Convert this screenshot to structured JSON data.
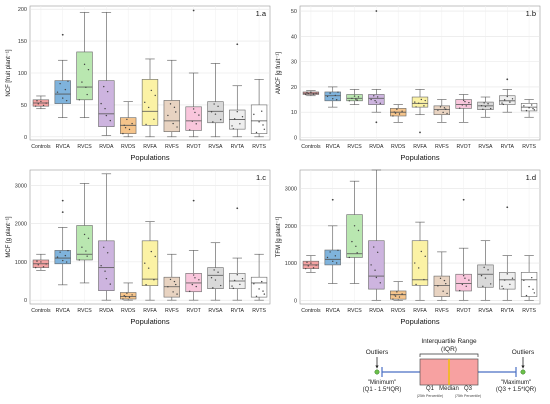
{
  "categories": [
    "Controls",
    "RVCA",
    "RVCS",
    "RVDA",
    "RVDS",
    "RVFA",
    "RVFS",
    "RVOT",
    "RVSA",
    "RVTA",
    "RVTS"
  ],
  "box_colors": [
    "#f4a3a3",
    "#7fb3dc",
    "#b9e7b0",
    "#cdb4df",
    "#f5c48b",
    "#fbf2a5",
    "#e8d3c1",
    "#f9c6dc",
    "#d9d9d9",
    "#eeeeee",
    "#ffffff"
  ],
  "chart_data": [
    {
      "type": "box",
      "panel": "1.a",
      "xlabel": "Populations",
      "ylabel": "NCF [fruit plant⁻¹]",
      "ylim": [
        -5,
        205
      ],
      "yticks": [
        0,
        50,
        100,
        150,
        200
      ],
      "grid": true,
      "boxes": [
        {
          "category": "Controls",
          "min": 44,
          "q1": 48,
          "median": 53,
          "q3": 58,
          "max": 64
        },
        {
          "category": "RVCA",
          "min": 30,
          "q1": 52,
          "median": 67,
          "q3": 88,
          "max": 120
        },
        {
          "category": "RVCS",
          "min": 30,
          "q1": 58,
          "median": 78,
          "q3": 133,
          "max": 195
        },
        {
          "category": "RVDA",
          "min": 2,
          "q1": 16,
          "median": 36,
          "q3": 88,
          "max": 195
        },
        {
          "category": "RVDS",
          "min": 0,
          "q1": 5,
          "median": 18,
          "q3": 30,
          "max": 55
        },
        {
          "category": "RVFA",
          "min": 0,
          "q1": 18,
          "median": 40,
          "q3": 90,
          "max": 122
        },
        {
          "category": "RVFS",
          "min": 0,
          "q1": 8,
          "median": 25,
          "q3": 57,
          "max": 120
        },
        {
          "category": "RVOT",
          "min": 0,
          "q1": 10,
          "median": 25,
          "q3": 47,
          "max": 100
        },
        {
          "category": "RVSA",
          "min": 0,
          "q1": 22,
          "median": 40,
          "q3": 55,
          "max": 115
        },
        {
          "category": "RVTA",
          "min": 0,
          "q1": 12,
          "median": 27,
          "q3": 42,
          "max": 80
        },
        {
          "category": "RVTS",
          "min": 0,
          "q1": 5,
          "median": 25,
          "q3": 50,
          "max": 90
        }
      ],
      "outliers": [
        {
          "category": "RVCA",
          "values": [
            160
          ]
        },
        {
          "category": "RVOT",
          "values": [
            198
          ]
        },
        {
          "category": "RVTA",
          "values": [
            145
          ]
        }
      ]
    },
    {
      "type": "box",
      "panel": "1.b",
      "xlabel": "Populations",
      "ylabel": "AMCF [g fruit⁻¹]",
      "ylim": [
        -1,
        52
      ],
      "yticks": [
        0,
        10,
        20,
        30,
        40,
        50
      ],
      "grid": true,
      "boxes": [
        {
          "category": "Controls",
          "min": 16.5,
          "q1": 17,
          "median": 17.5,
          "q3": 18,
          "max": 18.5
        },
        {
          "category": "RVCA",
          "min": 12,
          "q1": 14.5,
          "median": 16.5,
          "q3": 18,
          "max": 20
        },
        {
          "category": "RVCS",
          "min": 13,
          "q1": 14.5,
          "median": 15.5,
          "q3": 17,
          "max": 19
        },
        {
          "category": "RVDA",
          "min": 10,
          "q1": 13,
          "median": 15.5,
          "q3": 17,
          "max": 19
        },
        {
          "category": "RVDS",
          "min": 6,
          "q1": 8.5,
          "median": 10,
          "q3": 11.5,
          "max": 13
        },
        {
          "category": "RVFA",
          "min": 9,
          "q1": 12,
          "median": 13.5,
          "q3": 16,
          "max": 19
        },
        {
          "category": "RVFS",
          "min": 6,
          "q1": 9,
          "median": 11,
          "q3": 12.5,
          "max": 15
        },
        {
          "category": "RVOT",
          "min": 6,
          "q1": 11.5,
          "median": 13,
          "q3": 15,
          "max": 17
        },
        {
          "category": "RVSA",
          "min": 8,
          "q1": 11,
          "median": 12.5,
          "q3": 14,
          "max": 16
        },
        {
          "category": "RVTA",
          "min": 10,
          "q1": 13,
          "median": 14.5,
          "q3": 16.5,
          "max": 19
        },
        {
          "category": "RVTS",
          "min": 8,
          "q1": 10.5,
          "median": 12,
          "q3": 13.5,
          "max": 15
        }
      ],
      "outliers": [
        {
          "category": "RVDA",
          "values": [
            50,
            6
          ]
        },
        {
          "category": "RVFA",
          "values": [
            2
          ]
        },
        {
          "category": "RVTA",
          "values": [
            23
          ]
        }
      ]
    },
    {
      "type": "box",
      "panel": "1.c",
      "xlabel": "Populations",
      "ylabel": "MCF [g plant⁻¹]",
      "ylim": [
        -100,
        3400
      ],
      "yticks": [
        0,
        1000,
        2000,
        3000
      ],
      "grid": true,
      "boxes": [
        {
          "category": "Controls",
          "min": 780,
          "q1": 850,
          "median": 950,
          "q3": 1050,
          "max": 1200
        },
        {
          "category": "RVCA",
          "min": 400,
          "q1": 950,
          "median": 1100,
          "q3": 1300,
          "max": 1900
        },
        {
          "category": "RVCS",
          "min": 450,
          "q1": 1050,
          "median": 1200,
          "q3": 1950,
          "max": 3050
        },
        {
          "category": "RVDA",
          "min": 0,
          "q1": 250,
          "median": 850,
          "q3": 1550,
          "max": 3300
        },
        {
          "category": "RVDS",
          "min": 0,
          "q1": 30,
          "median": 100,
          "q3": 200,
          "max": 450
        },
        {
          "category": "RVFA",
          "min": 0,
          "q1": 380,
          "median": 550,
          "q3": 1550,
          "max": 2050
        },
        {
          "category": "RVFS",
          "min": 0,
          "q1": 80,
          "median": 350,
          "q3": 600,
          "max": 1200
        },
        {
          "category": "RVOT",
          "min": 0,
          "q1": 220,
          "median": 450,
          "q3": 700,
          "max": 1300
        },
        {
          "category": "RVSA",
          "min": 0,
          "q1": 300,
          "median": 650,
          "q3": 850,
          "max": 1500
        },
        {
          "category": "RVTA",
          "min": 0,
          "q1": 300,
          "median": 500,
          "q3": 700,
          "max": 1100
        },
        {
          "category": "RVTS",
          "min": 0,
          "q1": 80,
          "median": 450,
          "q3": 600,
          "max": 1200
        }
      ],
      "outliers": [
        {
          "category": "RVCA",
          "values": [
            2600,
            2300
          ]
        },
        {
          "category": "RVOT",
          "values": [
            2600
          ]
        },
        {
          "category": "RVTA",
          "values": [
            2400
          ]
        }
      ]
    },
    {
      "type": "box",
      "panel": "1.d",
      "xlabel": "Populations",
      "ylabel": "TFM [g plant⁻¹]",
      "ylim": [
        -100,
        3500
      ],
      "yticks": [
        0,
        1000,
        2000,
        3000
      ],
      "grid": true,
      "boxes": [
        {
          "category": "Controls",
          "min": 750,
          "q1": 850,
          "median": 950,
          "q3": 1050,
          "max": 1200
        },
        {
          "category": "RVCA",
          "min": 450,
          "q1": 950,
          "median": 1100,
          "q3": 1350,
          "max": 2000
        },
        {
          "category": "RVCS",
          "min": 450,
          "q1": 1150,
          "median": 1250,
          "q3": 2300,
          "max": 3200
        },
        {
          "category": "RVDA",
          "min": 0,
          "q1": 300,
          "median": 650,
          "q3": 1600,
          "max": 3500
        },
        {
          "category": "RVDS",
          "min": 0,
          "q1": 30,
          "median": 150,
          "q3": 250,
          "max": 500
        },
        {
          "category": "RVFA",
          "min": 0,
          "q1": 400,
          "median": 550,
          "q3": 1600,
          "max": 2100
        },
        {
          "category": "RVFS",
          "min": 0,
          "q1": 100,
          "median": 400,
          "q3": 650,
          "max": 1300
        },
        {
          "category": "RVOT",
          "min": 0,
          "q1": 250,
          "median": 450,
          "q3": 700,
          "max": 1400
        },
        {
          "category": "RVSA",
          "min": 0,
          "q1": 350,
          "median": 700,
          "q3": 950,
          "max": 1600
        },
        {
          "category": "RVTA",
          "min": 0,
          "q1": 300,
          "median": 550,
          "q3": 750,
          "max": 1200
        },
        {
          "category": "RVTS",
          "min": 0,
          "q1": 100,
          "median": 550,
          "q3": 750,
          "max": 1200
        }
      ],
      "outliers": [
        {
          "category": "RVCA",
          "values": [
            2700
          ]
        },
        {
          "category": "RVOT",
          "values": [
            2700
          ]
        },
        {
          "category": "RVTA",
          "values": [
            2500
          ]
        }
      ]
    }
  ],
  "legend": {
    "iqr_title": "Interquartile Range",
    "iqr_abbr": "(IQR)",
    "outliers_left": "Outliers",
    "outliers_right": "Outliers",
    "minimum_label": "\"Minimum\"",
    "minimum_formula": "(Q1 - 1.5*IQR)",
    "maximum_label": "\"Maximum\"",
    "maximum_formula": "(Q3 + 1.5*IQR)",
    "q1_label": "Q1",
    "q1_note": "(25th Percentile)",
    "median_label": "Median",
    "q3_label": "Q3",
    "q3_note": "(75th Percentile)",
    "box_color": "#f7a1a1",
    "median_color": "#f0c000",
    "whisker_color": "#4a6fc4",
    "outlier_color": "#6cc04a"
  }
}
